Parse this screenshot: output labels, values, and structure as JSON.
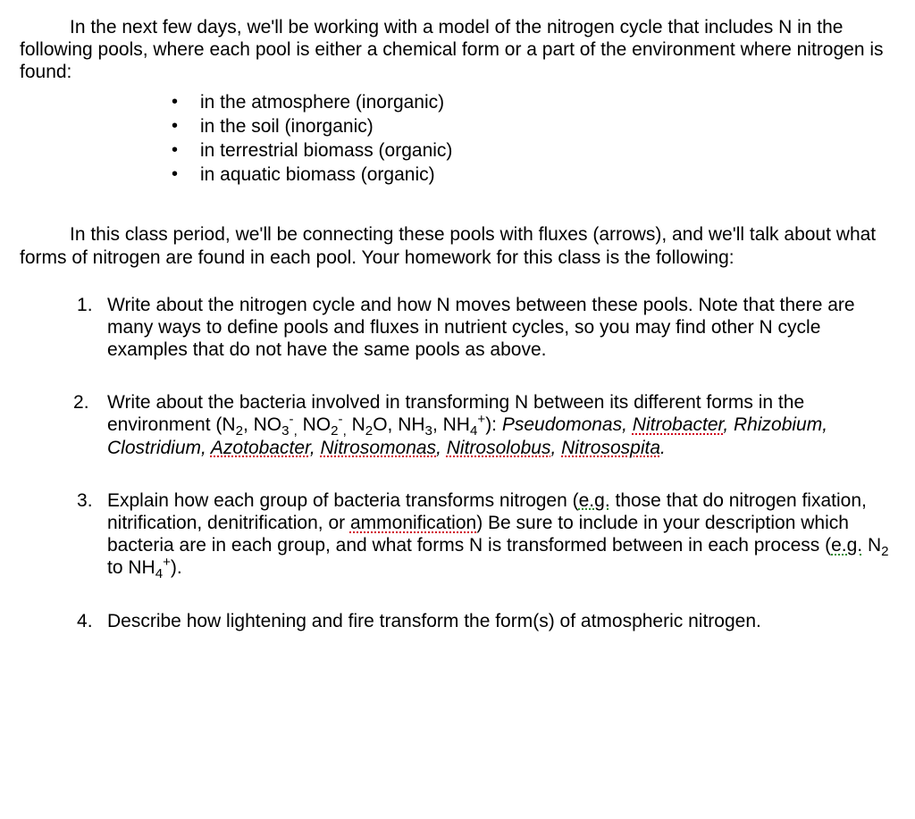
{
  "intro": {
    "p1": "In the next few days, we'll be working with a model of the nitrogen cycle that includes N in the following pools, where each pool is either a chemical form or a part of the environment where nitrogen is found:"
  },
  "pools": [
    "in the atmosphere (inorganic)",
    "in the soil (inorganic)",
    "in terrestrial biomass (organic)",
    "in aquatic biomass (organic)"
  ],
  "connect": {
    "p1": "In this class period, we'll be connecting these pools with fluxes (arrows), and we'll talk about what forms of nitrogen are found in each pool.   Your homework for this class is the following:"
  },
  "tasks": {
    "t1": "Write about the nitrogen cycle and how N moves between these pools.  Note that there are many ways to define pools and fluxes in nutrient cycles, so you may find other N cycle examples that do not have the same pools as above.",
    "t2": {
      "lead": "Write about the bacteria involved in transforming N between its different forms in the environment (N",
      "forms_tail": "): ",
      "bact": {
        "pseudomonas": "Pseudomonas",
        "nitrobacter": "Nitrobacter",
        "rhizobium": "Rhizobium",
        "clostridium": "Clostridium",
        "azotobacter": "Azotobacter",
        "nitrosomonas": "Nitrosomonas",
        "nitrosolobus": "Nitrosolobus",
        "nitrosospita": "Nitrosospita"
      }
    },
    "t3": {
      "a": "Explain how each group of bacteria transforms nitrogen (",
      "eg1": "e.g.",
      "b": " those that do nitrogen fixation, nitrification, denitrification, or ",
      "amm": "ammonification",
      "c": ")  Be sure to include in your description which bacteria are in each group, and what forms N is transformed between in each process (",
      "eg2": "e.g.",
      "d": " N",
      "e": " to NH",
      "f": ")."
    },
    "t4": "Describe how lightening and fire transform the form(s) of atmospheric nitrogen."
  }
}
